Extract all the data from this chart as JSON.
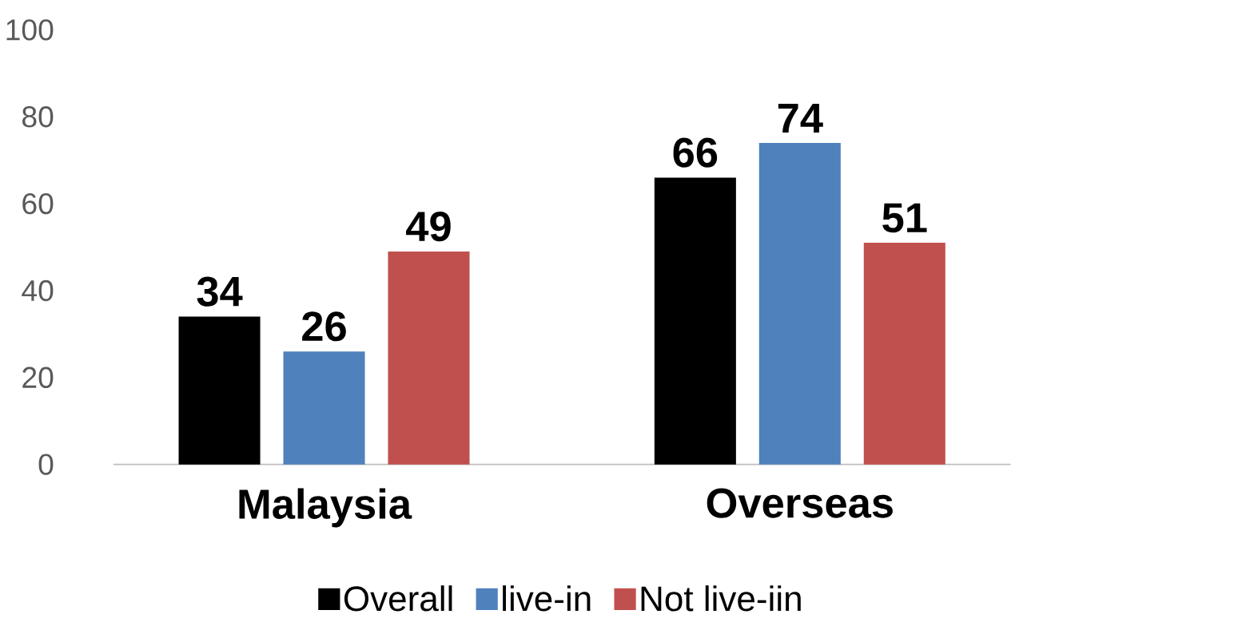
{
  "chart_data": {
    "type": "bar",
    "categories": [
      "Malaysia",
      "Overseas"
    ],
    "series": [
      {
        "name": "Overall",
        "color": "#000000",
        "values": [
          34,
          66
        ]
      },
      {
        "name": "live-in",
        "color": "#4f81bd",
        "values": [
          26,
          74
        ]
      },
      {
        "name": "Not live-iin",
        "color": "#c0504d",
        "values": [
          49,
          51
        ]
      }
    ],
    "ylim": [
      0,
      100
    ],
    "yticks": [
      0,
      20,
      40,
      60,
      80,
      100
    ],
    "data_labels": true,
    "legend": "bottom",
    "grid": false
  }
}
